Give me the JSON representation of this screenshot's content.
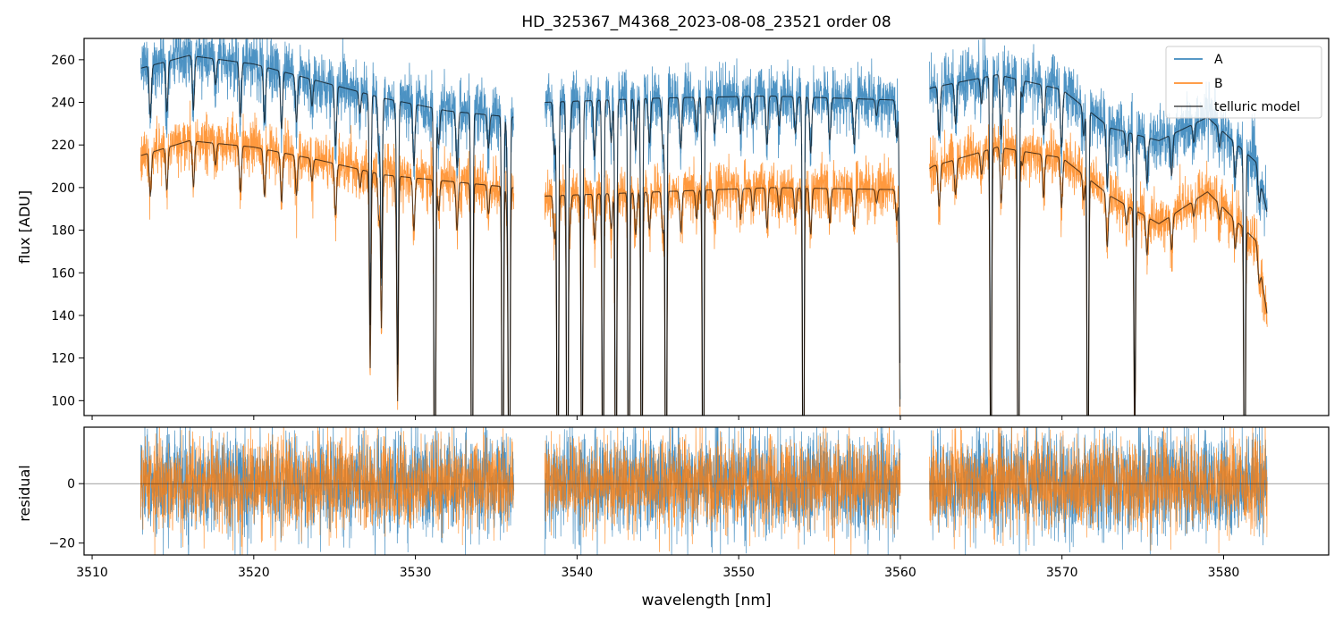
{
  "chart_data": {
    "title": "HD_325367_M4368_2023-08-08_23521  order 08",
    "type": "line",
    "xlabel": "wavelength [nm]",
    "xlim": [
      3509.5,
      3586.5
    ],
    "x_ticks": [
      3510,
      3520,
      3530,
      3540,
      3550,
      3560,
      3570,
      3580
    ],
    "segments": [
      [
        3513.0,
        3536.1
      ],
      [
        3538.0,
        3560.0
      ],
      [
        3561.8,
        3582.7
      ]
    ],
    "legend_position": "upper right",
    "colors": {
      "A": "#1f77b4",
      "B": "#ff7f0e",
      "telluric_model": "#000000",
      "zero_line": "#000000"
    },
    "panels": [
      {
        "id": "flux",
        "ylabel": "flux [ADU]",
        "ylim": [
          93,
          270
        ],
        "y_ticks": [
          100,
          120,
          140,
          160,
          180,
          200,
          220,
          240,
          260
        ],
        "series": [
          {
            "name": "A",
            "approx_continuum": [
              [
                3513,
                256
              ],
              [
                3516,
                262
              ],
              [
                3520,
                258
              ],
              [
                3524,
                250
              ],
              [
                3528,
                242
              ],
              [
                3532,
                236
              ],
              [
                3536,
                233
              ],
              [
                3538,
                240
              ],
              [
                3545,
                242
              ],
              [
                3552,
                243
              ],
              [
                3560,
                241
              ],
              [
                3562,
                247
              ],
              [
                3566,
                253
              ],
              [
                3570,
                246
              ],
              [
                3573,
                228
              ],
              [
                3576,
                222
              ],
              [
                3579,
                233
              ],
              [
                3582,
                212
              ],
              [
                3582.7,
                188
              ]
            ],
            "noise": 7
          },
          {
            "name": "B",
            "approx_continuum": [
              [
                3513,
                215
              ],
              [
                3516,
                222
              ],
              [
                3520,
                219
              ],
              [
                3524,
                213
              ],
              [
                3528,
                206
              ],
              [
                3532,
                203
              ],
              [
                3536,
                200
              ],
              [
                3538,
                196
              ],
              [
                3545,
                198
              ],
              [
                3552,
                200
              ],
              [
                3560,
                199
              ],
              [
                3562,
                210
              ],
              [
                3566,
                219
              ],
              [
                3570,
                214
              ],
              [
                3573,
                196
              ],
              [
                3576,
                183
              ],
              [
                3579,
                198
              ],
              [
                3582,
                175
              ],
              [
                3582.7,
                140
              ]
            ],
            "noise": 6
          },
          {
            "name": "telluric model",
            "follows": [
              "A",
              "B"
            ]
          }
        ],
        "absorption_lines": [
          {
            "x": 3527.2,
            "depth": 0.45
          },
          {
            "x": 3527.9,
            "depth": 0.35
          },
          {
            "x": 3528.9,
            "depth": 0.5
          },
          {
            "x": 3531.2,
            "depth": 1.0
          },
          {
            "x": 3533.5,
            "depth": 1.0
          },
          {
            "x": 3535.4,
            "depth": 1.0
          },
          {
            "x": 3535.8,
            "depth": 1.0
          },
          {
            "x": 3538.8,
            "depth": 1.0
          },
          {
            "x": 3539.4,
            "depth": 1.0
          },
          {
            "x": 3540.3,
            "depth": 0.85
          },
          {
            "x": 3541.6,
            "depth": 0.9
          },
          {
            "x": 3542.4,
            "depth": 0.95
          },
          {
            "x": 3543.2,
            "depth": 1.0
          },
          {
            "x": 3544.0,
            "depth": 0.9
          },
          {
            "x": 3545.5,
            "depth": 1.0
          },
          {
            "x": 3547.8,
            "depth": 1.0
          },
          {
            "x": 3554.0,
            "depth": 0.92
          },
          {
            "x": 3560.0,
            "depth": 0.6
          },
          {
            "x": 3565.6,
            "depth": 0.82
          },
          {
            "x": 3567.3,
            "depth": 1.0
          },
          {
            "x": 3571.6,
            "depth": 0.85
          },
          {
            "x": 3574.5,
            "depth": 0.6
          },
          {
            "x": 3581.3,
            "depth": 0.9
          }
        ]
      },
      {
        "id": "residual",
        "ylabel": "residual",
        "ylim": [
          -24,
          19
        ],
        "y_ticks": [
          -20,
          0
        ],
        "zero_line": 0,
        "series": [
          {
            "name": "A",
            "noise": 8.5
          },
          {
            "name": "B",
            "noise": 7.5
          }
        ]
      }
    ],
    "legend": [
      "A",
      "B",
      "telluric model"
    ]
  }
}
